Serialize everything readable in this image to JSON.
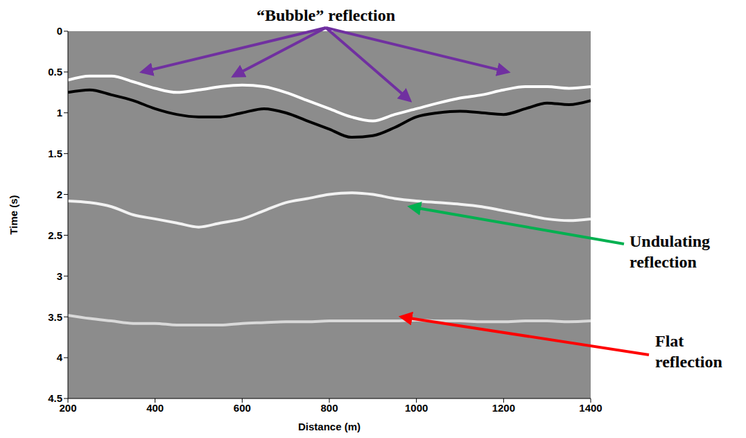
{
  "chart_data": {
    "type": "line",
    "x_label": "Distance (m)",
    "y_label": "Time (s)",
    "x": [
      200,
      250,
      300,
      350,
      400,
      450,
      500,
      550,
      600,
      650,
      700,
      750,
      800,
      850,
      900,
      950,
      1000,
      1050,
      1100,
      1150,
      1200,
      1250,
      1300,
      1350,
      1400
    ],
    "series": [
      {
        "color": "#ffffff",
        "line_style": "solid",
        "values": [
          0.6,
          0.55,
          0.55,
          0.62,
          0.7,
          0.75,
          0.72,
          0.68,
          0.66,
          0.68,
          0.75,
          0.85,
          0.95,
          1.05,
          1.1,
          1.02,
          0.95,
          0.88,
          0.82,
          0.78,
          0.72,
          0.68,
          0.68,
          0.7,
          0.68
        ]
      },
      {
        "color": "#000000",
        "line_style": "solid",
        "values": [
          0.75,
          0.72,
          0.78,
          0.85,
          0.95,
          1.02,
          1.05,
          1.05,
          1.0,
          0.95,
          1.0,
          1.1,
          1.2,
          1.3,
          1.28,
          1.18,
          1.05,
          1.0,
          0.98,
          1.0,
          1.02,
          0.95,
          0.88,
          0.9,
          0.85
        ]
      },
      {
        "color": "#f2f2f2",
        "line_style": "solid",
        "values": [
          2.08,
          2.1,
          2.15,
          2.25,
          2.3,
          2.35,
          2.4,
          2.35,
          2.3,
          2.2,
          2.1,
          2.05,
          2.0,
          1.98,
          2.0,
          2.05,
          2.08,
          2.1,
          2.12,
          2.15,
          2.2,
          2.25,
          2.3,
          2.32,
          2.3
        ]
      },
      {
        "color": "#d9d9d9",
        "line_style": "solid",
        "values": [
          3.48,
          3.52,
          3.55,
          3.58,
          3.58,
          3.6,
          3.6,
          3.6,
          3.58,
          3.57,
          3.56,
          3.56,
          3.55,
          3.55,
          3.55,
          3.55,
          3.54,
          3.55,
          3.55,
          3.56,
          3.56,
          3.55,
          3.55,
          3.56,
          3.55
        ]
      }
    ],
    "xlim": [
      200,
      1400
    ],
    "xticks": [
      200,
      400,
      600,
      800,
      1000,
      1200,
      1400
    ],
    "ylim": [
      0,
      4.5
    ],
    "yticks": [
      0,
      0.5,
      1,
      1.5,
      2,
      2.5,
      3,
      3.5,
      4,
      4.5
    ],
    "grid": false,
    "annotations": [
      {
        "text": "“Bubble” reflection",
        "color": "#7030a0",
        "targets": [
          [
            370,
            0.5
          ],
          [
            580,
            0.55
          ],
          [
            985,
            0.85
          ],
          [
            1210,
            0.5
          ]
        ]
      },
      {
        "text": "Undulating reflection",
        "color": "#00b050",
        "targets": [
          [
            985,
            2.15
          ]
        ]
      },
      {
        "text": "Flat reflection",
        "color": "#ff0000",
        "targets": [
          [
            965,
            3.5
          ]
        ]
      }
    ]
  }
}
